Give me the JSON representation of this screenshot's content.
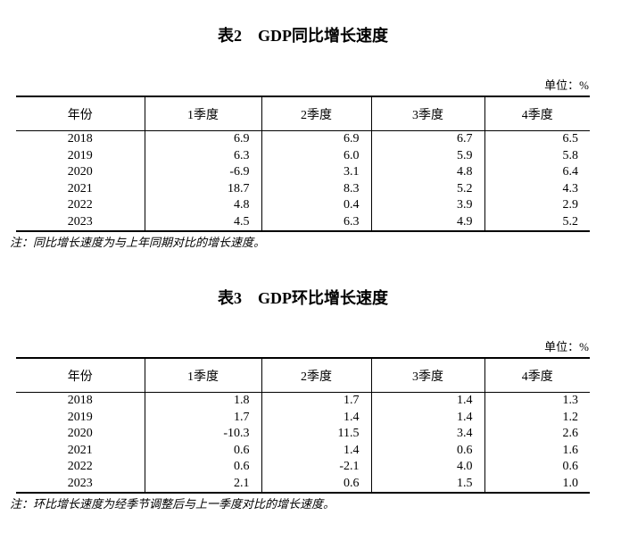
{
  "page": {
    "background": "#ffffff",
    "text_color": "#000000",
    "border_color": "#000000"
  },
  "tables": [
    {
      "id": "yoy",
      "title": "表2　GDP同比增长速度",
      "unit": "单位：%",
      "columns": [
        "年份",
        "1季度",
        "2季度",
        "3季度",
        "4季度"
      ],
      "rows": [
        {
          "year": "2018",
          "values": [
            "6.9",
            "6.9",
            "6.7",
            "6.5"
          ]
        },
        {
          "year": "2019",
          "values": [
            "6.3",
            "6.0",
            "5.9",
            "5.8"
          ]
        },
        {
          "year": "2020",
          "values": [
            "-6.9",
            "3.1",
            "4.8",
            "6.4"
          ]
        },
        {
          "year": "2021",
          "values": [
            "18.7",
            "8.3",
            "5.2",
            "4.3"
          ]
        },
        {
          "year": "2022",
          "values": [
            "4.8",
            "0.4",
            "3.9",
            "2.9"
          ]
        },
        {
          "year": "2023",
          "values": [
            "4.5",
            "6.3",
            "4.9",
            "5.2"
          ]
        }
      ],
      "note": "注：同比增长速度为与上年同期对比的增长速度。"
    },
    {
      "id": "qoq",
      "title": "表3　GDP环比增长速度",
      "unit": "单位：%",
      "columns": [
        "年份",
        "1季度",
        "2季度",
        "3季度",
        "4季度"
      ],
      "rows": [
        {
          "year": "2018",
          "values": [
            "1.8",
            "1.7",
            "1.4",
            "1.3"
          ]
        },
        {
          "year": "2019",
          "values": [
            "1.7",
            "1.4",
            "1.4",
            "1.2"
          ]
        },
        {
          "year": "2020",
          "values": [
            "-10.3",
            "11.5",
            "3.4",
            "2.6"
          ]
        },
        {
          "year": "2021",
          "values": [
            "0.6",
            "1.4",
            "0.6",
            "1.6"
          ]
        },
        {
          "year": "2022",
          "values": [
            "0.6",
            "-2.1",
            "4.0",
            "0.6"
          ]
        },
        {
          "year": "2023",
          "values": [
            "2.1",
            "0.6",
            "1.5",
            "1.0"
          ]
        }
      ],
      "note": "注：环比增长速度为经季节调整后与上一季度对比的增长速度。"
    }
  ]
}
